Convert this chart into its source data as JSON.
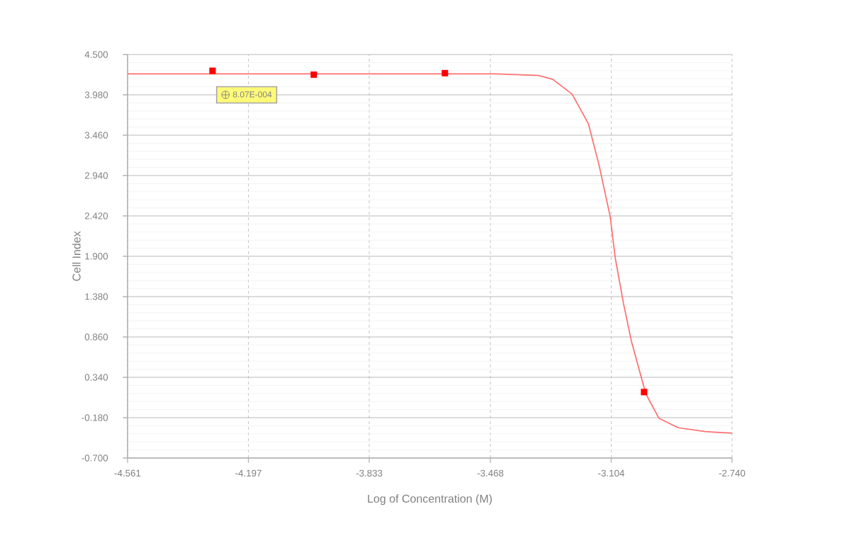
{
  "chart_data": {
    "type": "scatter",
    "xlabel": "Log of Concentration (M)",
    "ylabel": "Cell Index",
    "annotations": [
      "8.07E-004"
    ],
    "series": [
      {
        "color": "#ff0000",
        "marker": "square",
        "x": [
          -4.305,
          -4.0,
          -3.605,
          -3.005
        ],
        "values": [
          4.29,
          4.24,
          4.26,
          0.15
        ]
      },
      {
        "type": "line",
        "color": "#ff7070",
        "marker": "none",
        "line_style": "solid",
        "x": [
          -4.561,
          -3.451,
          -3.323,
          -3.28,
          -3.222,
          -3.173,
          -3.141,
          -3.107,
          -3.092,
          -3.067,
          -3.043,
          -3.0,
          -2.96,
          -2.902,
          -2.821,
          -2.74
        ],
        "values": [
          4.25,
          4.25,
          4.23,
          4.18,
          3.99,
          3.61,
          3.08,
          2.41,
          1.88,
          1.29,
          0.8,
          0.13,
          -0.19,
          -0.31,
          -0.36,
          -0.38
        ]
      }
    ],
    "xlim": [
      -4.561,
      -2.74
    ],
    "xticks": [
      -4.561,
      -4.197,
      -3.833,
      -3.468,
      -3.104,
      {
        "value": -2.74,
        "label": "-2.740"
      }
    ],
    "ylim": [
      -0.7,
      4.5
    ],
    "yticks": [
      {
        "value": -0.7,
        "label": "-0.700"
      },
      {
        "value": -0.18,
        "label": "-0.180"
      },
      {
        "value": 0.34,
        "label": "0.340"
      },
      {
        "value": 0.86,
        "label": "0.860"
      },
      {
        "value": 1.38,
        "label": "1.380"
      },
      {
        "value": 1.9,
        "label": "1.900"
      },
      {
        "value": 2.42,
        "label": "2.420"
      },
      {
        "value": 2.94,
        "label": "2.940"
      },
      {
        "value": 3.46,
        "label": "3.460"
      },
      {
        "value": 3.98,
        "label": "3.980"
      },
      {
        "value": 4.5,
        "label": "4.500"
      }
    ],
    "grid": true
  }
}
